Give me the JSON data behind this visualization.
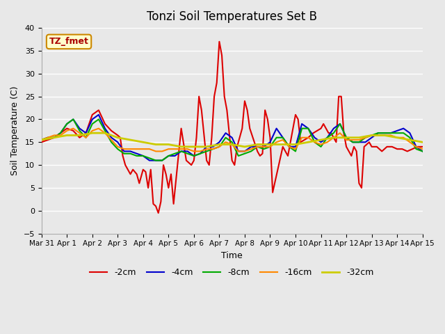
{
  "title": "Tonzi Soil Temperatures Set B",
  "xlabel": "Time",
  "ylabel": "Soil Temperature (C)",
  "ylim": [
    -5,
    40
  ],
  "xlim": [
    0,
    15
  ],
  "tick_labels": [
    "Mar 31",
    "Apr 1",
    "Apr 2",
    "Apr 3",
    "Apr 4",
    "Apr 5",
    "Apr 6",
    "Apr 7",
    "Apr 8",
    "Apr 9",
    "Apr 10",
    "Apr 11",
    "Apr 12",
    "Apr 13",
    "Apr 14",
    "Apr 15"
  ],
  "annotation_text": "TZ_fmet",
  "background_color": "#e8e8e8",
  "series": {
    "-2cm": {
      "color": "#dd0000",
      "linewidth": 1.5,
      "x": [
        0,
        0.25,
        0.5,
        0.75,
        1.0,
        1.25,
        1.5,
        1.75,
        2.0,
        2.25,
        2.5,
        2.75,
        3.0,
        3.1,
        3.2,
        3.3,
        3.5,
        3.6,
        3.75,
        3.85,
        4.0,
        4.1,
        4.2,
        4.3,
        4.4,
        4.5,
        4.6,
        4.7,
        4.8,
        4.9,
        5.0,
        5.1,
        5.2,
        5.5,
        5.7,
        5.9,
        6.0,
        6.1,
        6.2,
        6.3,
        6.5,
        6.6,
        6.7,
        6.8,
        6.9,
        7.0,
        7.1,
        7.2,
        7.3,
        7.5,
        7.6,
        7.7,
        7.8,
        7.9,
        8.0,
        8.1,
        8.2,
        8.5,
        8.6,
        8.7,
        8.8,
        8.9,
        9.0,
        9.1,
        9.5,
        9.7,
        10.0,
        10.1,
        10.2,
        10.5,
        10.7,
        11.0,
        11.1,
        11.2,
        11.3,
        11.4,
        11.5,
        11.6,
        11.7,
        11.8,
        11.9,
        12.0,
        12.1,
        12.2,
        12.3,
        12.4,
        12.5,
        12.6,
        12.7,
        12.9,
        13.0,
        13.2,
        13.4,
        13.6,
        13.8,
        14.0,
        14.2,
        14.4,
        14.8,
        15.0
      ],
      "y": [
        15,
        15.5,
        16,
        17,
        18,
        17.5,
        16,
        17,
        21,
        22,
        19,
        17.5,
        16.5,
        16,
        12,
        10,
        8,
        9,
        8,
        6,
        9,
        8.5,
        5,
        9,
        1.5,
        1,
        -0.5,
        2,
        10,
        8,
        5,
        8,
        1.5,
        18,
        11,
        10,
        11,
        16,
        25,
        22,
        11,
        10,
        16,
        25,
        28,
        37,
        34,
        25,
        22,
        11,
        10,
        14,
        16,
        18,
        24,
        22,
        18,
        13,
        12,
        12.5,
        22,
        20,
        16,
        4,
        14,
        12,
        21,
        20,
        15,
        16,
        17,
        18,
        19,
        18,
        17,
        17,
        16,
        15,
        25,
        25,
        17,
        14,
        13,
        12,
        14,
        13,
        6,
        5,
        14,
        15,
        14,
        14,
        13,
        14,
        14,
        13.5,
        13.5,
        13,
        14,
        14
      ]
    },
    "-4cm": {
      "color": "#0000cc",
      "linewidth": 1.5,
      "x": [
        0,
        0.25,
        0.5,
        0.75,
        1.0,
        1.25,
        1.5,
        1.75,
        2.0,
        2.25,
        2.5,
        2.75,
        3.0,
        3.25,
        3.5,
        3.75,
        4.0,
        4.25,
        4.5,
        4.75,
        5.0,
        5.25,
        5.5,
        5.75,
        6.0,
        6.25,
        6.5,
        6.75,
        7.0,
        7.25,
        7.5,
        7.75,
        8.0,
        8.25,
        8.5,
        8.75,
        9.0,
        9.25,
        9.5,
        9.75,
        10.0,
        10.25,
        10.5,
        10.75,
        11.0,
        11.25,
        11.5,
        11.75,
        12.0,
        12.25,
        12.5,
        12.75,
        13.0,
        13.25,
        13.5,
        13.75,
        14.0,
        14.25,
        14.5,
        14.75,
        15.0
      ],
      "y": [
        15.5,
        16,
        16,
        17,
        19,
        20,
        18,
        17,
        20,
        21,
        18,
        16,
        15,
        13,
        13,
        12.5,
        12,
        11,
        11,
        11,
        12,
        12,
        13,
        13,
        12,
        12.5,
        14,
        14,
        15,
        17,
        16,
        13,
        13,
        14,
        14,
        14,
        15,
        18,
        16,
        14,
        14,
        19,
        18,
        16,
        15,
        16,
        18,
        19,
        16,
        15,
        15,
        15,
        16,
        17,
        17,
        17,
        17.5,
        18,
        17,
        14,
        13
      ]
    },
    "-8cm": {
      "color": "#00aa00",
      "linewidth": 1.5,
      "x": [
        0,
        0.25,
        0.5,
        0.75,
        1.0,
        1.25,
        1.5,
        1.75,
        2.0,
        2.25,
        2.5,
        2.75,
        3.0,
        3.25,
        3.5,
        3.75,
        4.0,
        4.25,
        4.5,
        4.75,
        5.0,
        5.25,
        5.5,
        5.75,
        6.0,
        6.25,
        6.5,
        6.75,
        7.0,
        7.25,
        7.5,
        7.75,
        8.0,
        8.25,
        8.5,
        8.75,
        9.0,
        9.25,
        9.5,
        9.75,
        10.0,
        10.25,
        10.5,
        10.75,
        11.0,
        11.25,
        11.5,
        11.75,
        12.0,
        12.25,
        12.5,
        12.75,
        13.0,
        13.25,
        13.5,
        13.75,
        14.0,
        14.25,
        14.5,
        14.75,
        15.0
      ],
      "y": [
        15.5,
        16,
        16,
        17,
        19,
        20,
        17.5,
        16,
        19,
        20,
        17.5,
        15,
        13.5,
        12.5,
        12.5,
        12,
        12,
        11.5,
        11,
        11,
        12,
        12.5,
        13,
        12.5,
        12,
        12.5,
        13,
        13.5,
        14,
        16,
        15,
        12,
        12.5,
        13,
        14,
        13.5,
        14,
        16,
        16,
        14,
        13,
        18,
        18,
        15,
        14,
        16,
        17,
        19,
        16,
        15,
        15,
        16,
        16.5,
        17,
        17,
        17,
        17,
        17,
        16,
        13.5,
        13
      ]
    },
    "-16cm": {
      "color": "#ff8800",
      "linewidth": 1.5,
      "x": [
        0,
        0.25,
        0.5,
        0.75,
        1.0,
        1.25,
        1.5,
        1.75,
        2.0,
        2.25,
        2.5,
        2.75,
        3.0,
        3.25,
        3.5,
        3.75,
        4.0,
        4.25,
        4.5,
        4.75,
        5.0,
        5.25,
        5.5,
        5.75,
        6.0,
        6.25,
        6.5,
        6.75,
        7.0,
        7.25,
        7.5,
        7.75,
        8.0,
        8.25,
        8.5,
        8.75,
        9.0,
        9.25,
        9.5,
        9.75,
        10.0,
        10.25,
        10.5,
        10.75,
        11.0,
        11.25,
        11.5,
        11.75,
        12.0,
        12.25,
        12.5,
        12.75,
        13.0,
        13.25,
        13.5,
        13.75,
        14.0,
        14.25,
        14.5,
        14.75,
        15.0
      ],
      "y": [
        15.5,
        16,
        16.5,
        16.5,
        17.5,
        18,
        17,
        16,
        17.5,
        18,
        17,
        15.5,
        14,
        13.5,
        13.5,
        13.5,
        13.5,
        13.5,
        13,
        13,
        13.5,
        13.5,
        13.5,
        13.5,
        13,
        13,
        13.5,
        13.5,
        14,
        15,
        14.5,
        13,
        13,
        13.5,
        14,
        14,
        14,
        15,
        15.5,
        14,
        13.5,
        16,
        16,
        15,
        14.5,
        15,
        16,
        17,
        15.5,
        15.5,
        15.5,
        16,
        16.5,
        16.5,
        16.5,
        16.5,
        16,
        16,
        15,
        14,
        13.5
      ]
    },
    "-32cm": {
      "color": "#cccc00",
      "linewidth": 2.0,
      "x": [
        0,
        0.5,
        1.0,
        1.5,
        2.0,
        2.5,
        3.0,
        3.5,
        4.0,
        4.5,
        5.0,
        5.5,
        6.0,
        6.5,
        7.0,
        7.5,
        8.0,
        8.5,
        9.0,
        9.5,
        10.0,
        10.5,
        11.0,
        11.5,
        12.0,
        12.5,
        13.0,
        13.5,
        14.0,
        14.5,
        15.0
      ],
      "y": [
        15.5,
        16,
        16.5,
        16.5,
        17,
        17,
        16,
        15.5,
        15,
        14.5,
        14.5,
        14,
        14,
        14,
        14.5,
        14.5,
        14,
        14.5,
        14.5,
        14.5,
        14.5,
        15,
        15.5,
        16,
        16,
        16,
        16.5,
        16.5,
        16,
        15.5,
        15
      ]
    }
  },
  "legend": [
    {
      "label": "-2cm",
      "color": "#dd0000",
      "linewidth": 1.5
    },
    {
      "label": "-4cm",
      "color": "#0000cc",
      "linewidth": 1.5
    },
    {
      "label": "-8cm",
      "color": "#00aa00",
      "linewidth": 1.5
    },
    {
      "label": "-16cm",
      "color": "#ff8800",
      "linewidth": 1.5
    },
    {
      "label": "-32cm",
      "color": "#cccc00",
      "linewidth": 2.0
    }
  ]
}
